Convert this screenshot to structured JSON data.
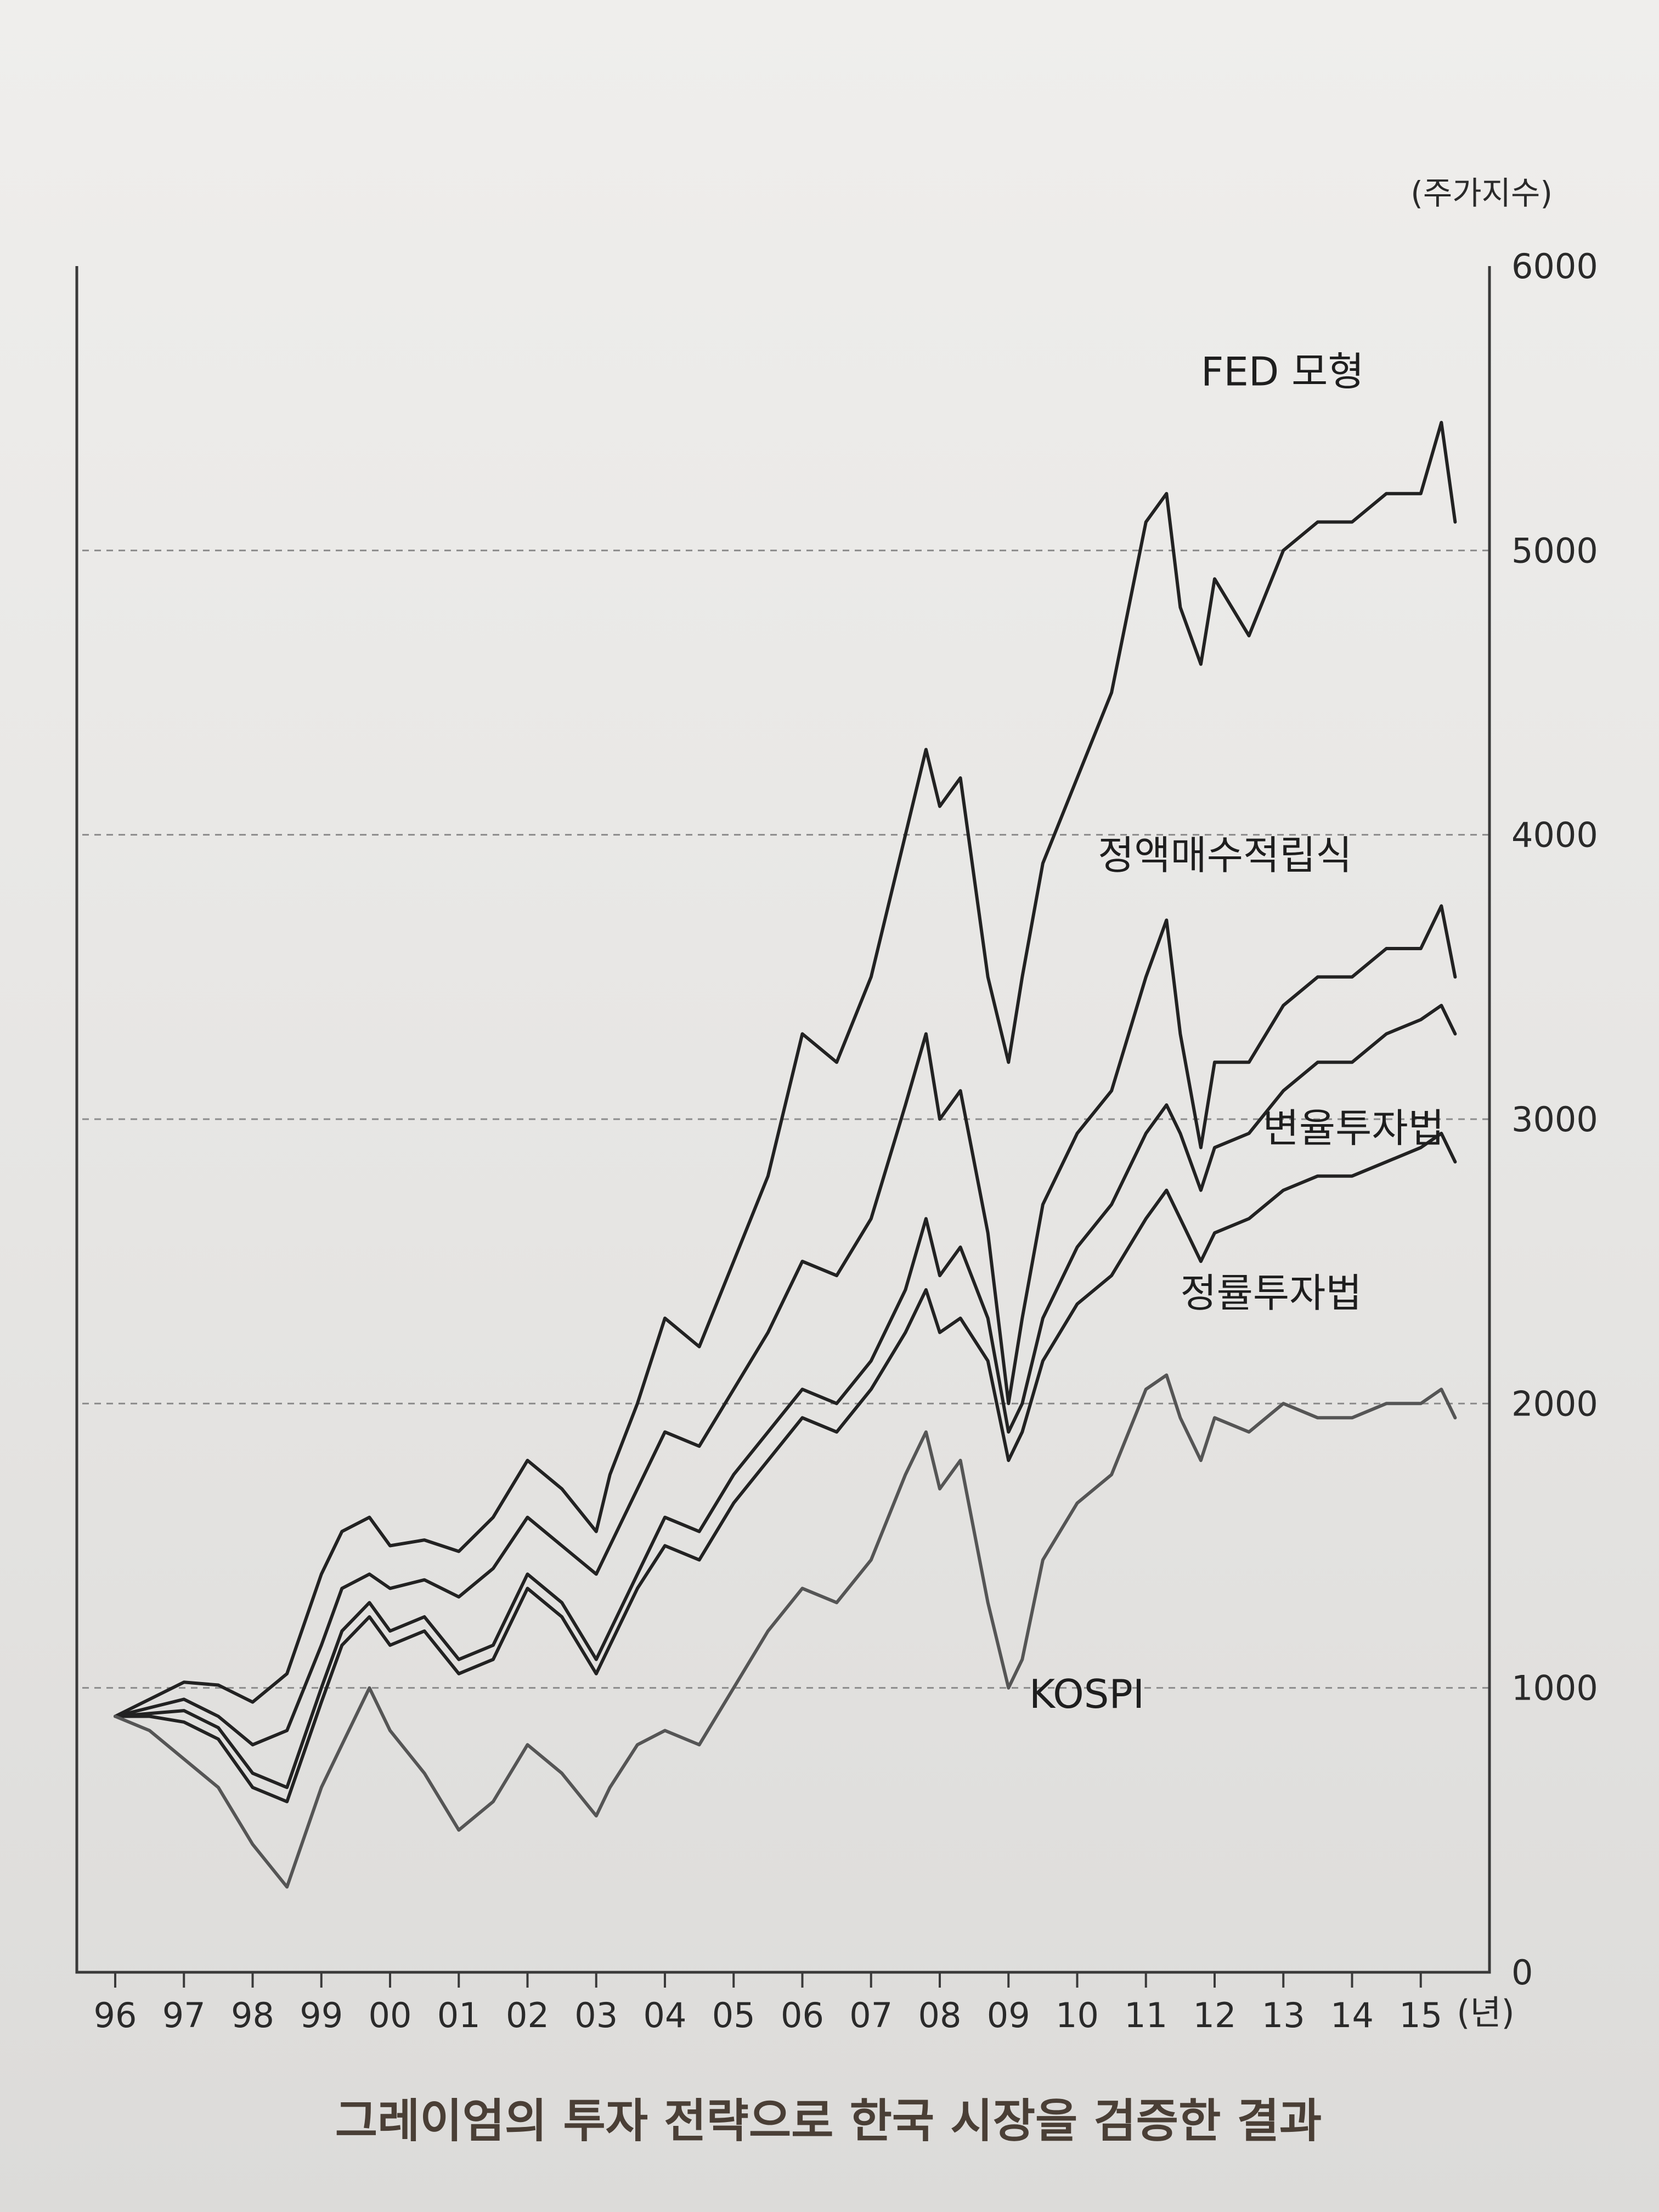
{
  "chart_data": {
    "type": "line",
    "title": "",
    "caption": "그레이엄의 투자 전략으로 한국 시장을 검증한 결과",
    "ylabel": "(주가지수)",
    "xlabel": "",
    "x_unit_label": "(년)",
    "xlim": [
      1996,
      2016
    ],
    "ylim": [
      0,
      6000
    ],
    "y_ticks": [
      0,
      1000,
      2000,
      3000,
      4000,
      5000,
      6000
    ],
    "x_ticks": [
      {
        "value": 1996,
        "label": "96"
      },
      {
        "value": 1997,
        "label": "97"
      },
      {
        "value": 1998,
        "label": "98"
      },
      {
        "value": 1999,
        "label": "99"
      },
      {
        "value": 2000,
        "label": "00"
      },
      {
        "value": 2001,
        "label": "01"
      },
      {
        "value": 2002,
        "label": "02"
      },
      {
        "value": 2003,
        "label": "03"
      },
      {
        "value": 2004,
        "label": "04"
      },
      {
        "value": 2005,
        "label": "05"
      },
      {
        "value": 2006,
        "label": "06"
      },
      {
        "value": 2007,
        "label": "07"
      },
      {
        "value": 2008,
        "label": "08"
      },
      {
        "value": 2009,
        "label": "09"
      },
      {
        "value": 2010,
        "label": "10"
      },
      {
        "value": 2011,
        "label": "11"
      },
      {
        "value": 2012,
        "label": "12"
      },
      {
        "value": 2013,
        "label": "13"
      },
      {
        "value": 2014,
        "label": "14"
      },
      {
        "value": 2015,
        "label": "15"
      }
    ],
    "grid": "dashed horizontal",
    "legend": "inline labels",
    "series": [
      {
        "name": "FED 모형",
        "color": "#222222",
        "x": [
          1996,
          1996.5,
          1997,
          1997.5,
          1998,
          1998.5,
          1999,
          1999.3,
          1999.7,
          2000,
          2000.5,
          2001,
          2001.5,
          2002,
          2002.5,
          2003,
          2003.2,
          2003.6,
          2004,
          2004.5,
          2005,
          2005.5,
          2006,
          2006.5,
          2007,
          2007.5,
          2007.8,
          2008,
          2008.3,
          2008.7,
          2009,
          2009.2,
          2009.5,
          2010,
          2010.5,
          2011,
          2011.3,
          2011.5,
          2011.8,
          2012,
          2012.5,
          2013,
          2013.5,
          2014,
          2014.5,
          2015,
          2015.3,
          2015.5
        ],
        "values": [
          900,
          960,
          1020,
          1010,
          950,
          1050,
          1400,
          1550,
          1600,
          1500,
          1520,
          1480,
          1600,
          1800,
          1700,
          1550,
          1750,
          2000,
          2300,
          2200,
          2500,
          2800,
          3300,
          3200,
          3500,
          4000,
          4300,
          4100,
          4200,
          3500,
          3200,
          3500,
          3900,
          4200,
          4500,
          5100,
          5200,
          4800,
          4600,
          4900,
          4700,
          5000,
          5100,
          5100,
          5200,
          5200,
          5450,
          5100
        ]
      },
      {
        "name": "정액매수적립식",
        "color": "#222222",
        "x": [
          1996,
          1996.5,
          1997,
          1997.5,
          1998,
          1998.5,
          1999,
          1999.3,
          1999.7,
          2000,
          2000.5,
          2001,
          2001.5,
          2002,
          2002.5,
          2003,
          2003.2,
          2003.6,
          2004,
          2004.5,
          2005,
          2005.5,
          2006,
          2006.5,
          2007,
          2007.5,
          2007.8,
          2008,
          2008.3,
          2008.7,
          2009,
          2009.2,
          2009.5,
          2010,
          2010.5,
          2011,
          2011.3,
          2011.5,
          2011.8,
          2012,
          2012.5,
          2013,
          2013.5,
          2014,
          2014.5,
          2015,
          2015.3,
          2015.5
        ],
        "values": [
          900,
          930,
          960,
          900,
          800,
          850,
          1150,
          1350,
          1400,
          1350,
          1380,
          1320,
          1420,
          1600,
          1500,
          1400,
          1500,
          1700,
          1900,
          1850,
          2050,
          2250,
          2500,
          2450,
          2650,
          3050,
          3300,
          3000,
          3100,
          2600,
          2000,
          2300,
          2700,
          2950,
          3100,
          3500,
          3700,
          3300,
          2900,
          3200,
          3200,
          3400,
          3500,
          3500,
          3600,
          3600,
          3750,
          3500
        ]
      },
      {
        "name": "변율투자법",
        "color": "#222222",
        "x": [
          1996,
          1996.5,
          1997,
          1997.5,
          1998,
          1998.5,
          1999,
          1999.3,
          1999.7,
          2000,
          2000.5,
          2001,
          2001.5,
          2002,
          2002.5,
          2003,
          2003.2,
          2003.6,
          2004,
          2004.5,
          2005,
          2005.5,
          2006,
          2006.5,
          2007,
          2007.5,
          2007.8,
          2008,
          2008.3,
          2008.7,
          2009,
          2009.2,
          2009.5,
          2010,
          2010.5,
          2011,
          2011.3,
          2011.5,
          2011.8,
          2012,
          2012.5,
          2013,
          2013.5,
          2014,
          2014.5,
          2015,
          2015.3,
          2015.5
        ],
        "values": [
          900,
          910,
          920,
          860,
          700,
          650,
          1000,
          1200,
          1300,
          1200,
          1250,
          1100,
          1150,
          1400,
          1300,
          1100,
          1200,
          1400,
          1600,
          1550,
          1750,
          1900,
          2050,
          2000,
          2150,
          2400,
          2650,
          2450,
          2550,
          2300,
          1900,
          2000,
          2300,
          2550,
          2700,
          2950,
          3050,
          2950,
          2750,
          2900,
          2950,
          3100,
          3200,
          3200,
          3300,
          3350,
          3400,
          3300
        ]
      },
      {
        "name": "정률투자법",
        "color": "#222222",
        "x": [
          1996,
          1996.5,
          1997,
          1997.5,
          1998,
          1998.5,
          1999,
          1999.3,
          1999.7,
          2000,
          2000.5,
          2001,
          2001.5,
          2002,
          2002.5,
          2003,
          2003.2,
          2003.6,
          2004,
          2004.5,
          2005,
          2005.5,
          2006,
          2006.5,
          2007,
          2007.5,
          2007.8,
          2008,
          2008.3,
          2008.7,
          2009,
          2009.2,
          2009.5,
          2010,
          2010.5,
          2011,
          2011.3,
          2011.5,
          2011.8,
          2012,
          2012.5,
          2013,
          2013.5,
          2014,
          2014.5,
          2015,
          2015.3,
          2015.5
        ],
        "values": [
          900,
          900,
          880,
          820,
          650,
          600,
          950,
          1150,
          1250,
          1150,
          1200,
          1050,
          1100,
          1350,
          1250,
          1050,
          1150,
          1350,
          1500,
          1450,
          1650,
          1800,
          1950,
          1900,
          2050,
          2250,
          2400,
          2250,
          2300,
          2150,
          1800,
          1900,
          2150,
          2350,
          2450,
          2650,
          2750,
          2650,
          2500,
          2600,
          2650,
          2750,
          2800,
          2800,
          2850,
          2900,
          2950,
          2850
        ]
      },
      {
        "name": "KOSPI",
        "color": "#555555",
        "x": [
          1996,
          1996.5,
          1997,
          1997.5,
          1998,
          1998.5,
          1999,
          1999.3,
          1999.7,
          2000,
          2000.5,
          2001,
          2001.5,
          2002,
          2002.5,
          2003,
          2003.2,
          2003.6,
          2004,
          2004.5,
          2005,
          2005.5,
          2006,
          2006.5,
          2007,
          2007.5,
          2007.8,
          2008,
          2008.3,
          2008.7,
          2009,
          2009.2,
          2009.5,
          2010,
          2010.5,
          2011,
          2011.3,
          2011.5,
          2011.8,
          2012,
          2012.5,
          2013,
          2013.5,
          2014,
          2014.5,
          2015,
          2015.3,
          2015.5
        ],
        "values": [
          900,
          850,
          750,
          650,
          450,
          300,
          650,
          800,
          1000,
          850,
          700,
          500,
          600,
          800,
          700,
          550,
          650,
          800,
          850,
          800,
          1000,
          1200,
          1350,
          1300,
          1450,
          1750,
          1900,
          1700,
          1800,
          1300,
          1000,
          1100,
          1450,
          1650,
          1750,
          2050,
          2100,
          1950,
          1800,
          1950,
          1900,
          2000,
          1950,
          1950,
          2000,
          2000,
          2050,
          1950
        ]
      }
    ]
  }
}
